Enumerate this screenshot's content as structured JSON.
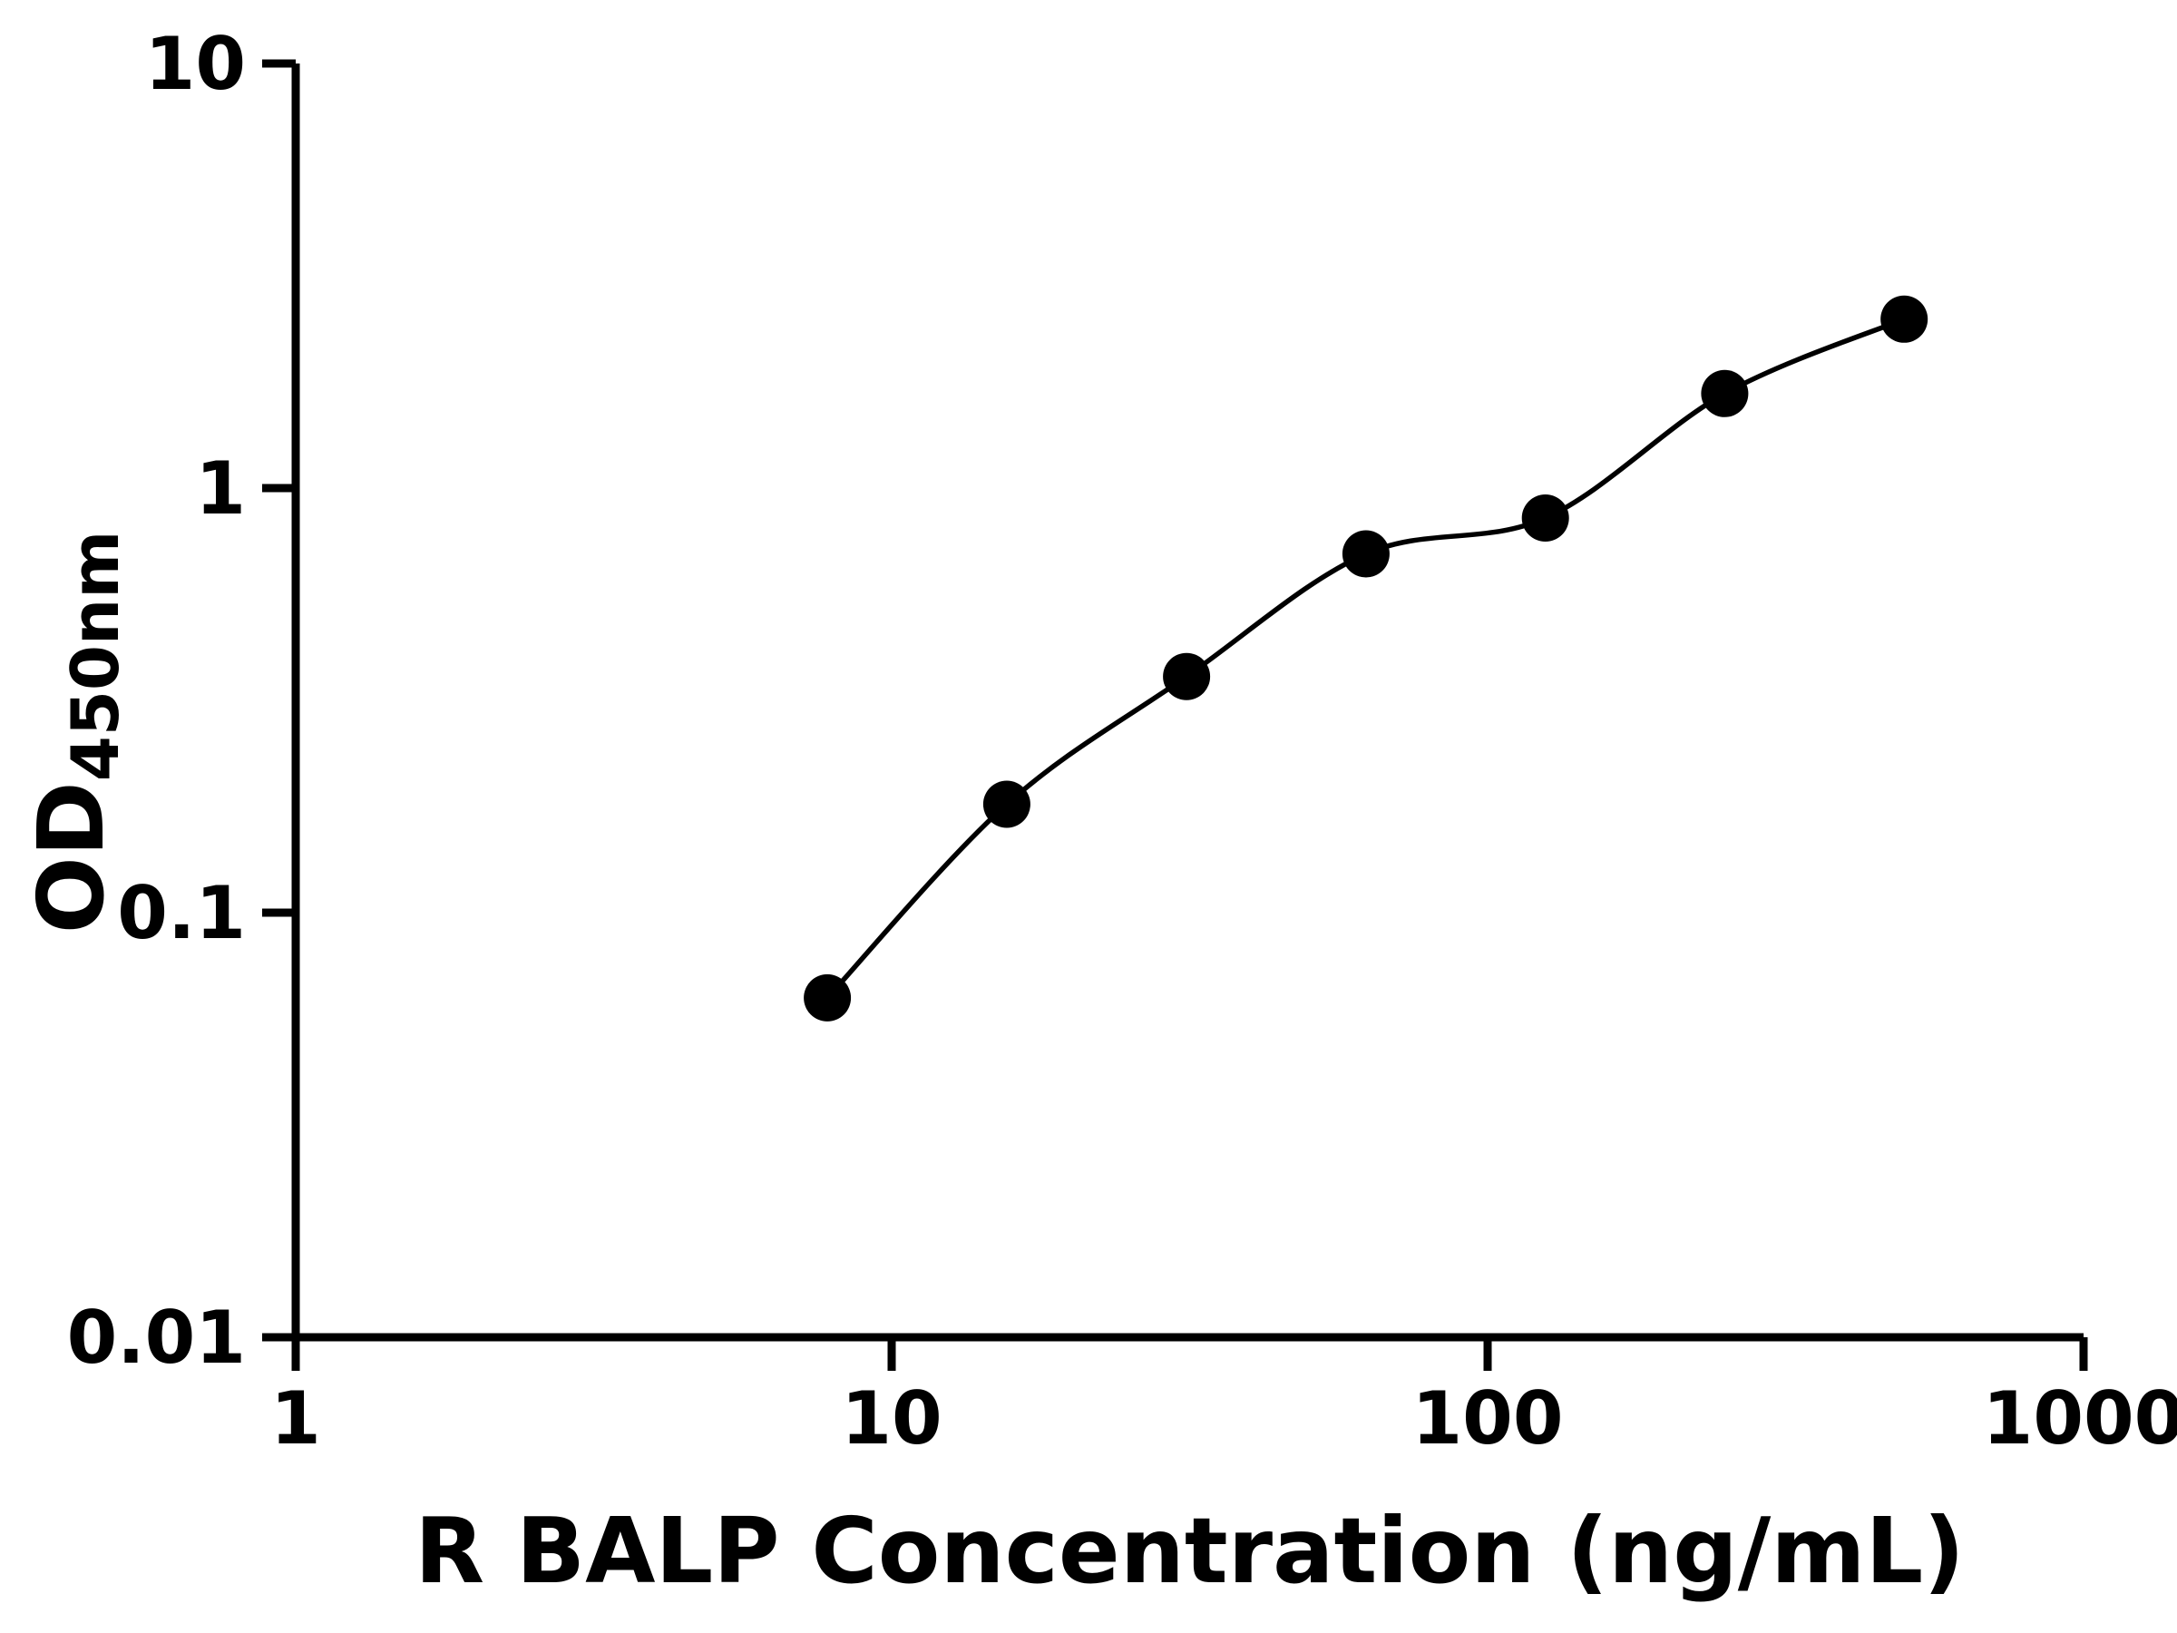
{
  "figure": {
    "background_color": "#ffffff",
    "axis_color": "#000000",
    "text_color": "#000000"
  },
  "chart_data": {
    "type": "scatter",
    "subtype": "ELISA standard curve, smooth fit line through points",
    "xlabel": "R BALP Concentration (ng/mL)",
    "ylabel_main": "OD",
    "ylabel_sub": "450nm",
    "x_scale": "log",
    "y_scale": "log",
    "xlim": [
      1,
      1000
    ],
    "ylim": [
      0.01,
      10
    ],
    "x_ticks": [
      1,
      10,
      100,
      1000
    ],
    "x_tick_labels": [
      "1",
      "10",
      "100",
      "1000"
    ],
    "y_ticks": [
      0.01,
      0.1,
      1,
      10
    ],
    "y_tick_labels": [
      "0.01",
      "0.1",
      "1",
      "10"
    ],
    "grid": false,
    "legend": false,
    "series": [
      {
        "marker": "circle",
        "marker_color": "#000000",
        "line_color": "#000000",
        "x": [
          7.8,
          15.6,
          31.25,
          62.5,
          125,
          250,
          500
        ],
        "y": [
          0.063,
          0.18,
          0.36,
          0.7,
          0.85,
          1.67,
          2.5
        ]
      }
    ]
  }
}
